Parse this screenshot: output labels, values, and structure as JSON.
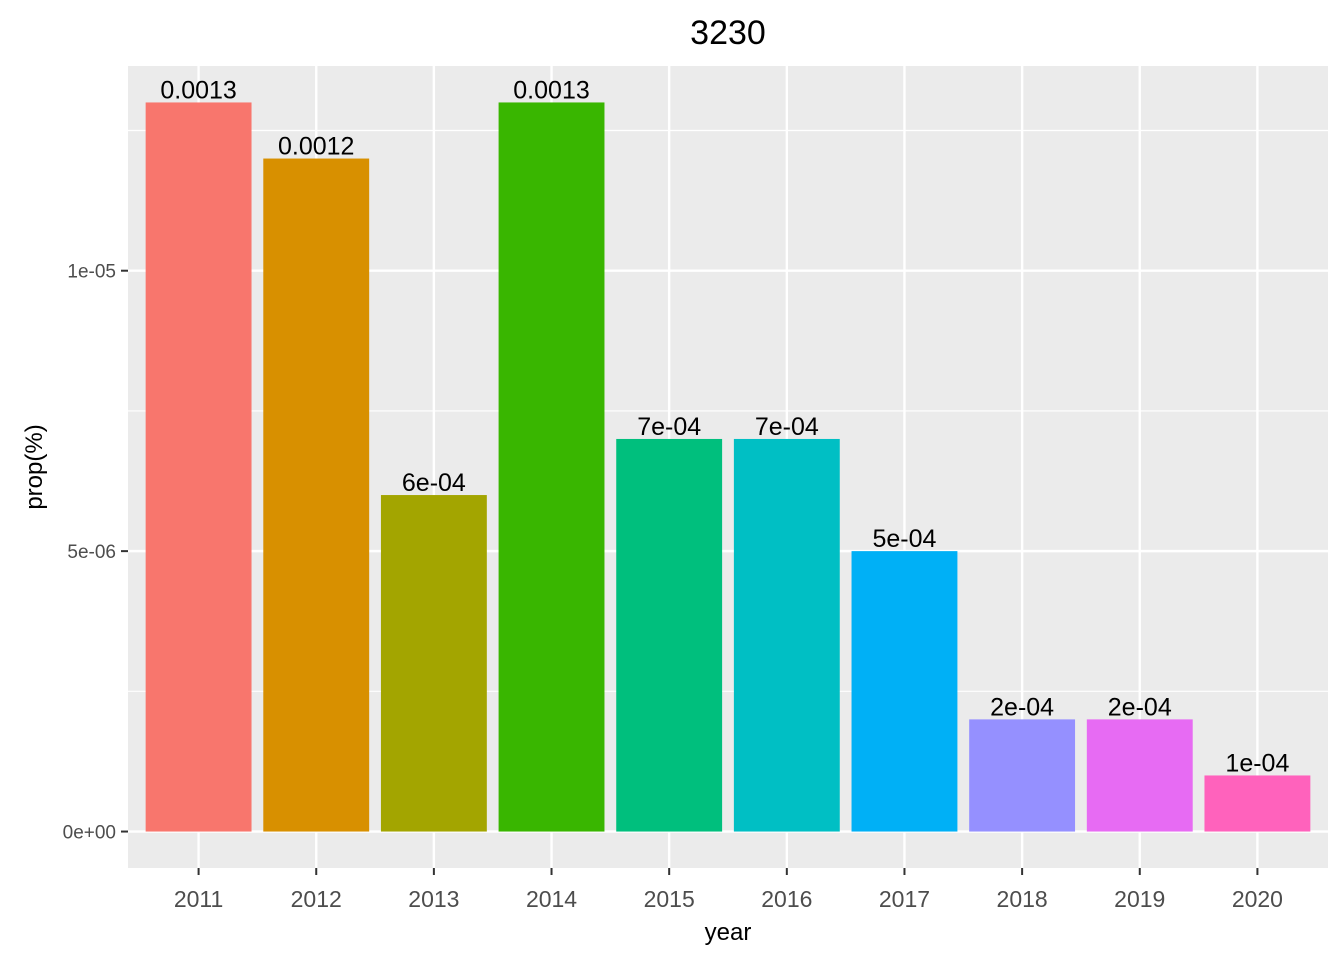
{
  "chart_data": {
    "type": "bar",
    "title": "3230",
    "xlabel": "year",
    "ylabel": "prop(%)",
    "categories": [
      "2011",
      "2012",
      "2013",
      "2014",
      "2015",
      "2016",
      "2017",
      "2018",
      "2019",
      "2020"
    ],
    "values": [
      1.3e-05,
      1.2e-05,
      6e-06,
      1.3e-05,
      7e-06,
      7e-06,
      5e-06,
      2e-06,
      2e-06,
      1e-06
    ],
    "data_labels": [
      "0.0013",
      "0.0012",
      "6e-04",
      "0.0013",
      "7e-04",
      "7e-04",
      "5e-04",
      "2e-04",
      "2e-04",
      "1e-04"
    ],
    "colors": [
      "#F8766D",
      "#D89000",
      "#A3A500",
      "#39B600",
      "#00BF7D",
      "#00BFC4",
      "#00B0F6",
      "#9590FF",
      "#E76BF3",
      "#FF62BC"
    ],
    "ylim": [
      -6.5e-07,
      1.365e-05
    ],
    "yticks": [
      0,
      5e-06,
      1e-05
    ],
    "ytick_labels": [
      "0e+00",
      "5e-06",
      "1e-05"
    ],
    "yminor": [
      2.5e-06,
      7.5e-06,
      1.25e-05
    ],
    "grid": true,
    "legend": "none",
    "panel_color": "#EBEBEB"
  }
}
